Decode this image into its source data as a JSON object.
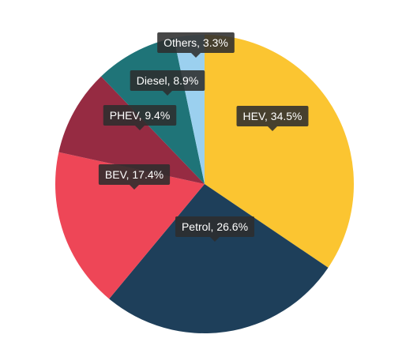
{
  "chart_data": {
    "type": "pie",
    "title": "",
    "slices": [
      {
        "label": "HEV",
        "value": 34.5,
        "display": "HEV, 34.5%",
        "color": "#fbc531"
      },
      {
        "label": "Petrol",
        "value": 26.6,
        "display": "Petrol, 26.6%",
        "color": "#1e3f5a"
      },
      {
        "label": "BEV",
        "value": 17.4,
        "display": "BEV, 17.4%",
        "color": "#ee4657"
      },
      {
        "label": "PHEV",
        "value": 9.4,
        "display": "PHEV, 9.4%",
        "color": "#962b42"
      },
      {
        "label": "Diesel",
        "value": 8.9,
        "display": "Diesel, 8.9%",
        "color": "#1f7478"
      },
      {
        "label": "Others",
        "value": 3.3,
        "display": "Others, 3.3%",
        "color": "#9bd0ef"
      }
    ],
    "label_style": "dark tooltip callouts"
  }
}
